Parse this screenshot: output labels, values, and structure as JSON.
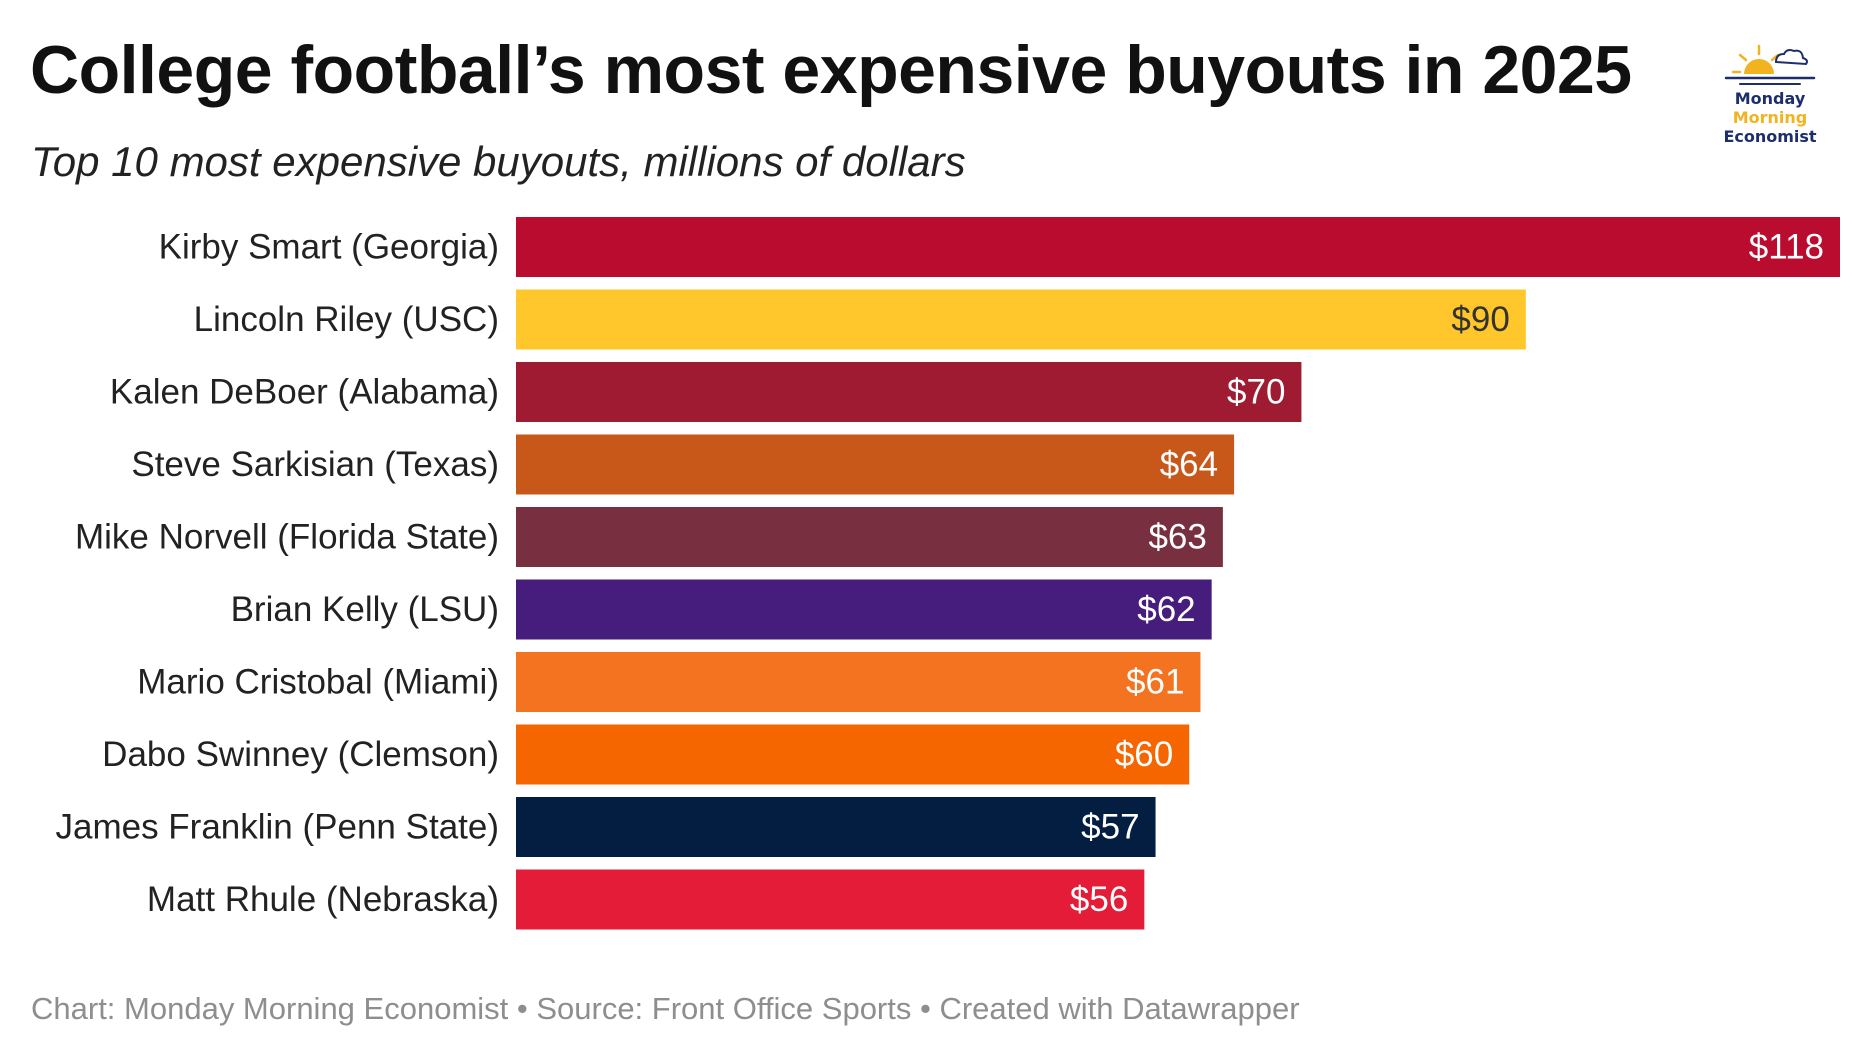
{
  "title": "College football’s most expensive buyouts in 2025",
  "subtitle": "Top 10 most expensive buyouts, millions of dollars",
  "logo": {
    "line1": "Monday",
    "line2": "Morning",
    "line3": "Economist",
    "icon": "sun-cloud-icon",
    "colors": {
      "navy": "#1c2f6b",
      "gold": "#f2b320"
    }
  },
  "footer": {
    "text": "Chart: Monday Morning Economist • Source: Front Office Sports • Created with Datawrapper"
  },
  "chart_data": {
    "type": "bar",
    "orientation": "horizontal",
    "title": "College football’s most expensive buyouts in 2025",
    "subtitle": "Top 10 most expensive buyouts, millions of dollars",
    "xlabel": "",
    "ylabel": "",
    "xlim": [
      0,
      118
    ],
    "grid": false,
    "value_prefix": "$",
    "categories": [
      "Kirby Smart (Georgia)",
      "Lincoln Riley (USC)",
      "Kalen DeBoer (Alabama)",
      "Steve Sarkisian (Texas)",
      "Mike Norvell (Florida State)",
      "Brian Kelly (LSU)",
      "Mario Cristobal (Miami)",
      "Dabo Swinney (Clemson)",
      "James Franklin (Penn State)",
      "Matt Rhule (Nebraska)"
    ],
    "values": [
      118,
      90,
      70,
      64,
      63,
      62,
      61,
      60,
      57,
      56
    ],
    "colors": [
      "#ba0c2f",
      "#ffc72c",
      "#9e1b32",
      "#c8581a",
      "#782f40",
      "#461d7c",
      "#f47321",
      "#f56600",
      "#041e42",
      "#e41c38"
    ],
    "label_colors": [
      "#ffffff",
      "#333333",
      "#ffffff",
      "#ffffff",
      "#ffffff",
      "#ffffff",
      "#ffffff",
      "#ffffff",
      "#ffffff",
      "#ffffff"
    ]
  }
}
